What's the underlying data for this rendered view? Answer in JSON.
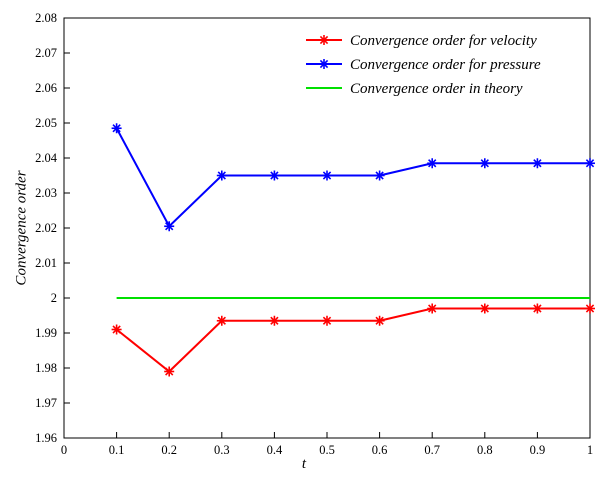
{
  "chart_data": {
    "type": "line",
    "title": "",
    "xlabel": "t",
    "ylabel": "Convergence order",
    "xlim": [
      0,
      1
    ],
    "ylim": [
      1.96,
      2.08
    ],
    "xticks": [
      0,
      0.1,
      0.2,
      0.3,
      0.4,
      0.5,
      0.6,
      0.7,
      0.8,
      0.9,
      1
    ],
    "yticks": [
      1.96,
      1.97,
      1.98,
      1.99,
      2,
      2.01,
      2.02,
      2.03,
      2.04,
      2.05,
      2.06,
      2.07,
      2.08
    ],
    "x": [
      0.1,
      0.2,
      0.3,
      0.4,
      0.5,
      0.6,
      0.7,
      0.8,
      0.9,
      1.0
    ],
    "grid": false,
    "legend_position": "top-right-inside",
    "axis_color": "#000000",
    "series": [
      {
        "name": "Convergence order for velocity",
        "color": "#ff0000",
        "marker": "asterisk",
        "values": [
          1.991,
          1.979,
          1.9935,
          1.9935,
          1.9935,
          1.9935,
          1.997,
          1.997,
          1.997,
          1.997
        ]
      },
      {
        "name": "Convergence order for pressure",
        "color": "#0000ff",
        "marker": "asterisk",
        "values": [
          2.0485,
          2.0205,
          2.035,
          2.035,
          2.035,
          2.035,
          2.0385,
          2.0385,
          2.0385,
          2.0385
        ]
      },
      {
        "name": "Convergence order in theory",
        "color": "#00e000",
        "marker": "none",
        "values": [
          2,
          2,
          2,
          2,
          2,
          2,
          2,
          2,
          2,
          2
        ]
      }
    ]
  }
}
